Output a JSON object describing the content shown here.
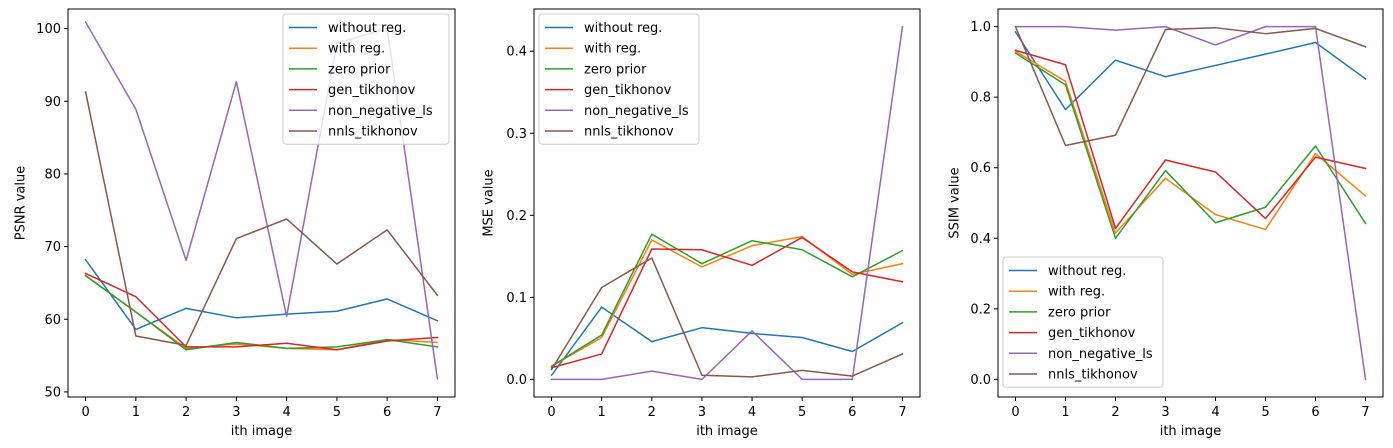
{
  "chart_data": [
    {
      "type": "line",
      "x": [
        0,
        1,
        2,
        3,
        4,
        5,
        6,
        7
      ],
      "xlabel": "ith image",
      "ylabel": "PSNR value",
      "xlim": [
        -0.35,
        7.35
      ],
      "ylim": [
        49.3,
        102.7
      ],
      "xticks": [
        "0",
        "1",
        "2",
        "3",
        "4",
        "5",
        "6",
        "7"
      ],
      "yticks": [
        50,
        60,
        70,
        80,
        90,
        100
      ],
      "legend_position": "top-right",
      "series": [
        {
          "name": "without reg.",
          "color": "#1f77b4",
          "values": [
            68.2,
            58.6,
            61.5,
            60.2,
            60.7,
            61.1,
            62.8,
            59.8
          ]
        },
        {
          "name": "with reg.",
          "color": "#ff7f0e",
          "values": [
            66.0,
            61.0,
            56.0,
            56.6,
            56.0,
            55.8,
            57.2,
            56.8
          ]
        },
        {
          "name": "zero prior",
          "color": "#2ca02c",
          "values": [
            66.0,
            61.0,
            55.8,
            56.8,
            56.0,
            56.2,
            57.2,
            56.2
          ]
        },
        {
          "name": "gen_tikhonov",
          "color": "#d62728",
          "values": [
            66.3,
            63.1,
            56.2,
            56.2,
            56.7,
            55.8,
            57.0,
            57.5
          ]
        },
        {
          "name": "non_negative_ls",
          "color": "#9467bd",
          "values": [
            100.9,
            88.9,
            68.1,
            92.7,
            60.4,
            98.0,
            100.0,
            51.8
          ]
        },
        {
          "name": "nnls_tikhonov",
          "color": "#8c564b",
          "values": [
            91.3,
            57.7,
            56.4,
            71.1,
            73.8,
            67.6,
            72.3,
            63.3
          ]
        }
      ]
    },
    {
      "type": "line",
      "x": [
        0,
        1,
        2,
        3,
        4,
        5,
        6,
        7
      ],
      "xlabel": "ith image",
      "ylabel": "MSE value",
      "xlim": [
        -0.35,
        7.35
      ],
      "ylim": [
        -0.0215,
        0.4515
      ],
      "xticks": [
        "0",
        "1",
        "2",
        "3",
        "4",
        "5",
        "6",
        "7"
      ],
      "yticks": [
        "0.0",
        "0.1",
        "0.2",
        "0.3",
        "0.4"
      ],
      "legend_position": "top-left",
      "series": [
        {
          "name": "without reg.",
          "color": "#1f77b4",
          "values": [
            0.005,
            0.088,
            0.046,
            0.063,
            0.056,
            0.051,
            0.034,
            0.069
          ]
        },
        {
          "name": "with reg.",
          "color": "#ff7f0e",
          "values": [
            0.016,
            0.051,
            0.17,
            0.137,
            0.163,
            0.174,
            0.128,
            0.141
          ]
        },
        {
          "name": "zero prior",
          "color": "#2ca02c",
          "values": [
            0.016,
            0.054,
            0.177,
            0.141,
            0.169,
            0.158,
            0.125,
            0.157
          ]
        },
        {
          "name": "gen_tikhonov",
          "color": "#d62728",
          "values": [
            0.014,
            0.031,
            0.159,
            0.158,
            0.139,
            0.173,
            0.131,
            0.119
          ]
        },
        {
          "name": "non_negative_ls",
          "color": "#9467bd",
          "values": [
            0.0,
            0.0,
            0.01,
            0.0,
            0.059,
            0.0,
            0.0,
            0.43
          ]
        },
        {
          "name": "nnls_tikhonov",
          "color": "#8c564b",
          "values": [
            0.012,
            0.112,
            0.148,
            0.005,
            0.003,
            0.011,
            0.004,
            0.031
          ]
        }
      ]
    },
    {
      "type": "line",
      "x": [
        0,
        1,
        2,
        3,
        4,
        5,
        6,
        7
      ],
      "xlabel": "ith image",
      "ylabel": "SSIM value",
      "xlim": [
        -0.35,
        7.35
      ],
      "ylim": [
        -0.05,
        1.05
      ],
      "xticks": [
        "0",
        "1",
        "2",
        "3",
        "4",
        "5",
        "6",
        "7"
      ],
      "yticks": [
        "0.0",
        "0.2",
        "0.4",
        "0.6",
        "0.8",
        "1.0"
      ],
      "legend_position": "bottom-left",
      "series": [
        {
          "name": "without reg.",
          "color": "#1f77b4",
          "values": [
            0.985,
            0.765,
            0.905,
            0.858,
            0.89,
            0.922,
            0.955,
            0.852
          ]
        },
        {
          "name": "with reg.",
          "color": "#ff7f0e",
          "values": [
            0.93,
            0.845,
            0.415,
            0.57,
            0.467,
            0.425,
            0.64,
            0.52
          ]
        },
        {
          "name": "zero prior",
          "color": "#2ca02c",
          "values": [
            0.925,
            0.835,
            0.4,
            0.592,
            0.444,
            0.488,
            0.662,
            0.442
          ]
        },
        {
          "name": "gen_tikhonov",
          "color": "#d62728",
          "values": [
            0.933,
            0.892,
            0.428,
            0.622,
            0.588,
            0.456,
            0.63,
            0.598
          ]
        },
        {
          "name": "non_negative_ls",
          "color": "#9467bd",
          "values": [
            1.0,
            1.0,
            0.99,
            1.0,
            0.948,
            1.0,
            1.0,
            0.0
          ]
        },
        {
          "name": "nnls_tikhonov",
          "color": "#8c564b",
          "values": [
            1.0,
            0.663,
            0.692,
            0.992,
            0.997,
            0.98,
            0.995,
            0.943
          ]
        }
      ]
    }
  ]
}
